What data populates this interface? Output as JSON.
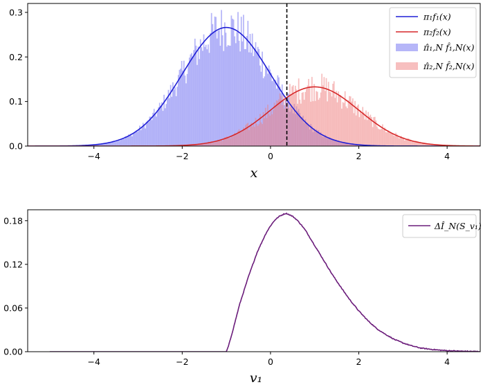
{
  "chart_data": [
    {
      "type": "histogram_with_curves",
      "xlabel": "x",
      "ylabel": "",
      "xlim": [
        -5.5,
        4.75
      ],
      "ylim": [
        0,
        0.32
      ],
      "xticks": [
        -4,
        -2,
        0,
        2,
        4
      ],
      "yticks": [
        0.0,
        0.1,
        0.2,
        0.3
      ],
      "xtick_labels": [
        "−4",
        "−2",
        "0",
        "2",
        "4"
      ],
      "ytick_labels": [
        "0.0",
        "0.1",
        "0.2",
        "0.3"
      ],
      "threshold_x": 0.37,
      "legend_position": "top-right",
      "series": [
        {
          "name": "π₁f₁(x)",
          "kind": "curve",
          "color": "#1f1fd6",
          "weight": 0.667,
          "mean": -1.0,
          "sd": 1.0
        },
        {
          "name": "π₂f₂(x)",
          "kind": "curve",
          "color": "#d62728",
          "weight": 0.333,
          "mean": 1.0,
          "sd": 1.0
        },
        {
          "name": "π̂₁,N f̂₁,N(x)",
          "kind": "histogram",
          "color": "#6e6ef2",
          "alpha": 0.5,
          "weight": 0.667,
          "mean": -1.0,
          "sd": 1.0,
          "range": [
            -5.0,
            3.5
          ],
          "noise_amplitude": 0.2
        },
        {
          "name": "π̂₂,N f̂₂,N(x)",
          "kind": "histogram",
          "color": "#ef7f7f",
          "alpha": 0.5,
          "weight": 0.333,
          "mean": 1.0,
          "sd": 1.0,
          "range": [
            -3.0,
            5.0
          ],
          "noise_amplitude": 0.25
        }
      ]
    },
    {
      "type": "line",
      "xlabel": "v₁",
      "ylabel": "",
      "xlim": [
        -5.5,
        4.75
      ],
      "ylim": [
        0,
        0.195
      ],
      "xticks": [
        -4,
        -2,
        0,
        2,
        4
      ],
      "yticks": [
        0.0,
        0.06,
        0.12,
        0.18
      ],
      "xtick_labels": [
        "−4",
        "−2",
        "0",
        "2",
        "4"
      ],
      "ytick_labels": [
        "0.00",
        "0.06",
        "0.12",
        "0.18"
      ],
      "legend_position": "top-right",
      "series": [
        {
          "name": "ΔÎ_N(S_v₁)",
          "color": "#6a1b7a",
          "x": [
            -5.0,
            -1.0,
            -0.95,
            -0.85,
            -0.7,
            -0.5,
            -0.3,
            -0.1,
            0.0,
            0.1,
            0.2,
            0.3,
            0.35,
            0.4,
            0.5,
            0.6,
            0.7,
            0.8,
            0.9,
            1.0,
            1.2,
            1.4,
            1.6,
            1.8,
            2.0,
            2.2,
            2.4,
            2.6,
            2.8,
            3.0,
            3.2,
            3.4,
            3.6,
            3.8,
            4.0,
            4.2,
            4.4,
            4.6,
            4.75
          ],
          "y": [
            0.0,
            0.0,
            0.008,
            0.03,
            0.065,
            0.103,
            0.137,
            0.163,
            0.173,
            0.181,
            0.186,
            0.189,
            0.19,
            0.189,
            0.186,
            0.181,
            0.174,
            0.166,
            0.156,
            0.146,
            0.126,
            0.106,
            0.088,
            0.071,
            0.056,
            0.043,
            0.032,
            0.024,
            0.017,
            0.012,
            0.008,
            0.005,
            0.0035,
            0.0023,
            0.0015,
            0.001,
            0.0006,
            0.0004,
            0.0003
          ]
        }
      ]
    }
  ]
}
